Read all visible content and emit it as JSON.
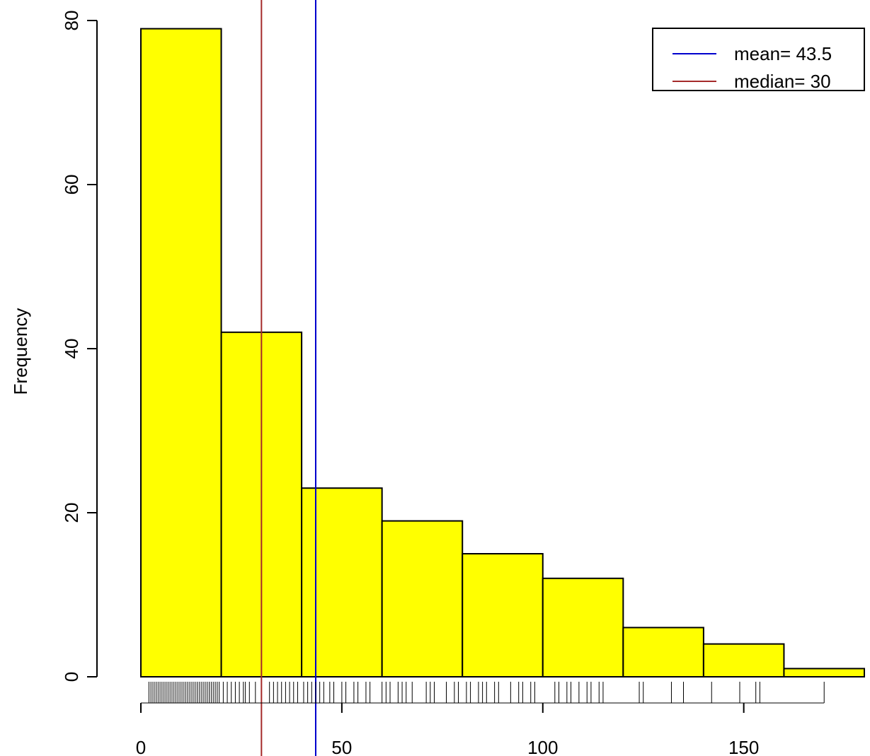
{
  "chart_data": {
    "type": "bar",
    "subtype": "histogram",
    "bin_edges": [
      0,
      20,
      40,
      60,
      80,
      100,
      120,
      140,
      160,
      180
    ],
    "values": [
      79,
      42,
      23,
      19,
      15,
      12,
      6,
      4,
      1
    ],
    "title": "",
    "xlabel": "",
    "ylabel": "Frequency",
    "xlim": [
      0,
      180
    ],
    "ylim": [
      0,
      80
    ],
    "x_ticks": [
      "0",
      "50",
      "100",
      "150"
    ],
    "y_ticks": [
      "0",
      "20",
      "40",
      "60",
      "80"
    ],
    "bar_color": "#ffff00",
    "grid": false,
    "reference_lines": [
      {
        "label": "mean= 43.5",
        "x": 43.5,
        "color": "#0000cd"
      },
      {
        "label": "median= 30",
        "x": 30,
        "color": "#a52a2a"
      }
    ],
    "legend": {
      "position": "top-right",
      "entries": [
        {
          "label": "mean= 43.5",
          "color": "#0000cd"
        },
        {
          "label": "median= 30",
          "color": "#a52a2a"
        }
      ]
    },
    "rug": [
      2,
      2.5,
      3,
      3.5,
      4,
      4.5,
      5,
      5.5,
      6,
      6.5,
      7,
      7.5,
      8,
      8.5,
      9,
      9.5,
      10,
      10.5,
      11,
      11.5,
      12,
      12.5,
      13,
      13.5,
      14,
      14.5,
      15,
      15.5,
      16,
      16.5,
      17,
      17.5,
      18,
      18.5,
      19,
      19.5,
      20.5,
      21.5,
      22.5,
      23.5,
      24.5,
      25.5,
      26,
      27,
      28.5,
      32,
      33,
      34,
      35,
      36,
      37,
      38,
      39,
      40.5,
      41.5,
      42.5,
      43.5,
      44.5,
      45.5,
      47,
      48,
      50,
      51,
      53,
      54,
      56,
      57,
      60,
      61,
      62,
      64,
      65,
      66,
      67.5,
      71,
      72,
      73,
      76,
      78,
      79,
      81,
      82,
      84,
      85,
      86,
      88,
      89,
      92,
      94,
      95,
      97,
      98,
      103,
      104,
      106,
      107,
      109,
      111,
      112,
      114,
      115,
      124,
      125,
      132,
      135,
      142,
      149,
      153,
      154,
      170
    ],
    "rug_axis_extent": [
      0,
      170
    ]
  }
}
